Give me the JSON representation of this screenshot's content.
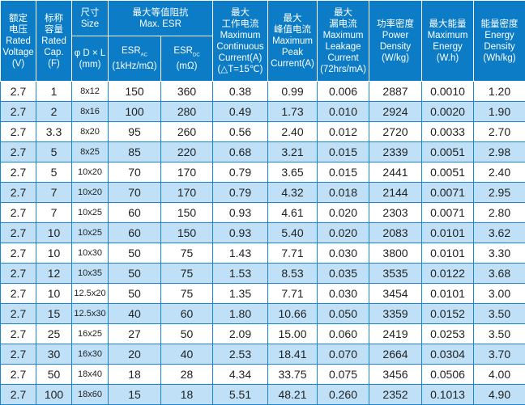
{
  "headers": {
    "voltage": [
      "额定",
      "电压",
      "Rated",
      "Voltage",
      "(V)"
    ],
    "cap": [
      "标称",
      "容量",
      "Rated",
      "Cap.",
      "(F)"
    ],
    "size": [
      "尺寸",
      "Size"
    ],
    "size_sub": [
      "φ D × L",
      "(mm)"
    ],
    "esr": [
      "最大等值阻抗",
      "Max. ESR"
    ],
    "esr_ac": [
      "ESR",
      "AC",
      "(1kHz/mΩ)"
    ],
    "esr_dc": [
      "ESR",
      "DC",
      "(mΩ)"
    ],
    "cont": [
      "最大",
      "工作电流",
      "Maximum",
      "Continuous",
      "Current(A)",
      "(△T=15℃)"
    ],
    "peak": [
      "最大",
      "峰值电流",
      "Maximum",
      "Peak",
      "Current(A)"
    ],
    "leak": [
      "最大",
      "漏电流",
      "Maximum",
      "Leakage",
      "Current",
      "(72hrs/mA)"
    ],
    "power": [
      "功率密度",
      "Power",
      "Density",
      "(W/kg)"
    ],
    "energy": [
      "最大能量",
      "Maximum",
      "Energy",
      "(W.h)"
    ],
    "edens": [
      "能量密度",
      "Energy",
      "Density",
      "(Wh/kg)"
    ]
  },
  "rows": [
    [
      "2.7",
      "1",
      "8x12",
      "150",
      "360",
      "0.38",
      "0.99",
      "0.006",
      "2887",
      "0.0010",
      "1.20"
    ],
    [
      "2.7",
      "2",
      "8x16",
      "100",
      "280",
      "0.49",
      "1.73",
      "0.010",
      "2924",
      "0.0020",
      "1.90"
    ],
    [
      "2.7",
      "3.3",
      "8x20",
      "95",
      "260",
      "0.56",
      "2.40",
      "0.012",
      "2720",
      "0.0033",
      "2.70"
    ],
    [
      "2.7",
      "5",
      "8x25",
      "85",
      "220",
      "0.68",
      "3.21",
      "0.015",
      "2339",
      "0.0051",
      "2.98"
    ],
    [
      "2.7",
      "5",
      "10x20",
      "70",
      "170",
      "0.79",
      "3.65",
      "0.015",
      "2441",
      "0.0051",
      "2.40"
    ],
    [
      "2.7",
      "7",
      "10x20",
      "70",
      "170",
      "0.79",
      "4.32",
      "0.018",
      "2144",
      "0.0071",
      "2.95"
    ],
    [
      "2.7",
      "7",
      "10x25",
      "60",
      "150",
      "0.93",
      "4.61",
      "0.020",
      "2303",
      "0.0071",
      "2.80"
    ],
    [
      "2.7",
      "10",
      "10x25",
      "60",
      "150",
      "0.93",
      "5.40",
      "0.020",
      "2083",
      "0.0101",
      "3.62"
    ],
    [
      "2.7",
      "10",
      "10x30",
      "50",
      "75",
      "1.43",
      "7.71",
      "0.030",
      "3800",
      "0.0101",
      "3.30"
    ],
    [
      "2.7",
      "12",
      "10x35",
      "50",
      "75",
      "1.53",
      "8.53",
      "0.035",
      "3535",
      "0.0122",
      "3.68"
    ],
    [
      "2.7",
      "10",
      "12.5x20",
      "50",
      "75",
      "1.35",
      "7.71",
      "0.030",
      "3454",
      "0.0101",
      "3.00"
    ],
    [
      "2.7",
      "15",
      "12.5x30",
      "40",
      "60",
      "1.80",
      "10.66",
      "0.050",
      "3359",
      "0.0152",
      "3.50"
    ],
    [
      "2.7",
      "25",
      "16x25",
      "27",
      "50",
      "2.09",
      "15.00",
      "0.060",
      "2419",
      "0.0253",
      "3.50"
    ],
    [
      "2.7",
      "30",
      "16x30",
      "20",
      "40",
      "2.53",
      "18.41",
      "0.070",
      "2664",
      "0.0304",
      "3.70"
    ],
    [
      "2.7",
      "50",
      "18x40",
      "18",
      "28",
      "4.34",
      "33.75",
      "0.075",
      "3456",
      "0.0506",
      "4.00"
    ],
    [
      "2.7",
      "100",
      "18x60",
      "15",
      "18",
      "5.51",
      "48.21",
      "0.260",
      "2352",
      "0.1013",
      "4.90"
    ]
  ]
}
